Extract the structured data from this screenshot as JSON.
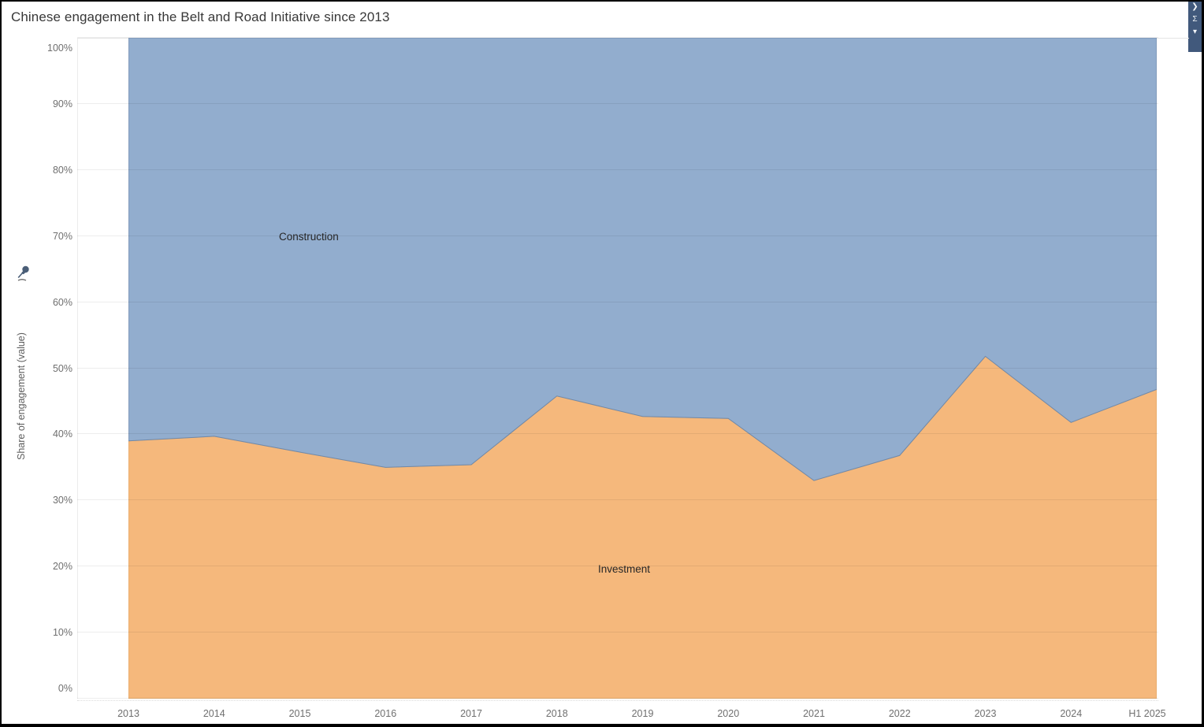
{
  "header": {
    "title": "Chinese engagement in the Belt and Road Initiative since 2013"
  },
  "side_panel": {
    "color": "#41597c",
    "icons": [
      {
        "name": "chevron-right-icon",
        "glyph": "❯"
      },
      {
        "name": "sigma-icon",
        "glyph": "Σ"
      },
      {
        "name": "caret-down-icon",
        "glyph": "▾"
      }
    ]
  },
  "chart_data": {
    "type": "area",
    "stacked": "percent",
    "title": "Chinese engagement in the Belt and Road Initiative since 2013",
    "x": [
      "2013",
      "2014",
      "2015",
      "2016",
      "2017",
      "2018",
      "2019",
      "2020",
      "2021",
      "2022",
      "2023",
      "2024",
      "H1 2025"
    ],
    "series": [
      {
        "name": "Investment",
        "color": "#f5b87c",
        "stroke": "#dfa35f",
        "values": [
          39.0,
          39.7,
          37.3,
          35.0,
          35.4,
          45.8,
          42.7,
          42.4,
          33.0,
          36.8,
          51.8,
          41.8,
          46.8
        ]
      },
      {
        "name": "Construction",
        "color": "#92adce",
        "stroke": "#7089a9",
        "values": [
          61.0,
          60.3,
          62.7,
          65.0,
          64.6,
          54.2,
          57.3,
          57.6,
          67.0,
          63.2,
          48.2,
          58.2,
          53.2
        ]
      }
    ],
    "ylabel": "Share of engagement (value)",
    "yticks": [
      "0%",
      "10%",
      "20%",
      "30%",
      "40%",
      "50%",
      "60%",
      "70%",
      "80%",
      "90%",
      "100%"
    ],
    "ylim": [
      0,
      100
    ],
    "grid": "horizontal",
    "legend": "labels-on-areas"
  }
}
